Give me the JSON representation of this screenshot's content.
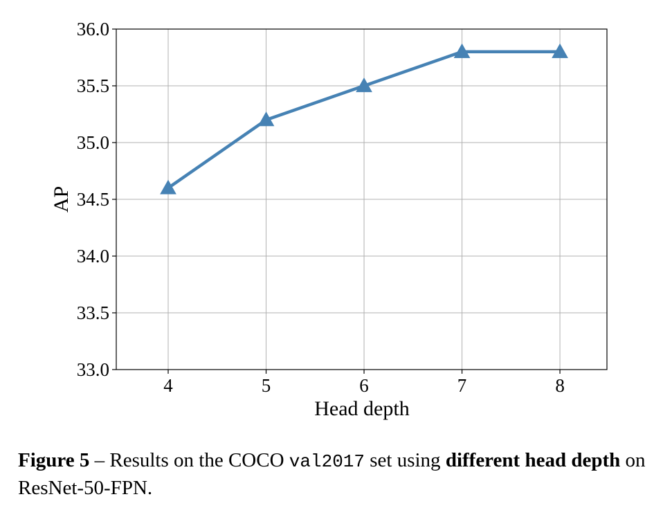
{
  "chart_data": {
    "type": "line",
    "x": [
      4,
      5,
      6,
      7,
      8
    ],
    "series": [
      {
        "values": [
          34.6,
          35.2,
          35.5,
          35.8,
          35.8
        ]
      }
    ],
    "xlabel": "Head depth",
    "ylabel": "AP",
    "xticks": [
      "4",
      "5",
      "6",
      "7",
      "8"
    ],
    "yticks": [
      "33.0",
      "33.5",
      "34.0",
      "34.5",
      "35.0",
      "35.5",
      "36.0"
    ],
    "ylim": [
      33.0,
      36.0
    ],
    "xlim": [
      3.47,
      8.48
    ],
    "grid": true,
    "marker": "triangle",
    "line_color": "#4682b4",
    "grid_color": "#b0b0b0"
  },
  "caption": {
    "label": "Figure 5",
    "dash": " – Results on the COCO ",
    "dataset": "val2017",
    "middle": " set using ",
    "emphasis_1": "different head",
    "emphasis_2": "depth",
    "end": " on ResNet-50-FPN."
  }
}
